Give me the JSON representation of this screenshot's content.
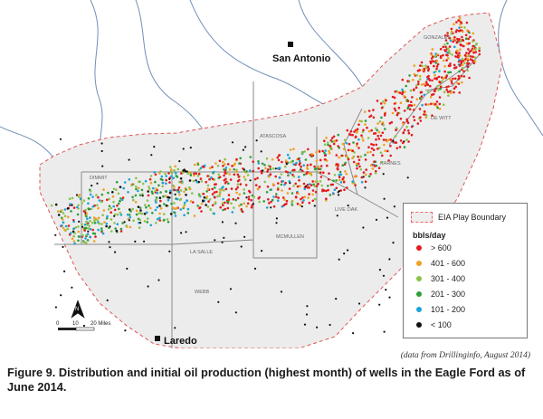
{
  "map": {
    "cities": [
      {
        "name": "San Antonio"
      },
      {
        "name": "Laredo"
      }
    ],
    "counties": [
      "GONZALES",
      "DE WITT",
      "KARNES",
      "ATASCOSA",
      "DIMMIT",
      "LA SALLE",
      "MCMULLEN",
      "LIVE OAK",
      "WEBB"
    ],
    "scale": {
      "ticks": [
        "0",
        "10",
        "20 Miles"
      ]
    },
    "north_label": "N",
    "colors": {
      "boundary_fill": "#ececec",
      "boundary_line": "#e05555",
      "river": "#6f8fb8",
      "county_line": "#8a8a8a"
    }
  },
  "legend": {
    "boundary_label": "EIA Play Boundary",
    "unit": "bbls/day",
    "items": [
      {
        "label": "> 600",
        "color": "#e41a1c"
      },
      {
        "label": "401 - 600",
        "color": "#f0a020"
      },
      {
        "label": "301 - 400",
        "color": "#8bc34a"
      },
      {
        "label": "201 - 300",
        "color": "#2e9d3a"
      },
      {
        "label": "101 - 200",
        "color": "#1aa3d9"
      },
      {
        "label": "< 100",
        "color": "#111111"
      }
    ]
  },
  "source_note": "(data from Drillinginfo, August 2014)",
  "caption": "Figure 9. Distribution and initial oil production (highest month) of wells in the Eagle Ford as of June 2014."
}
